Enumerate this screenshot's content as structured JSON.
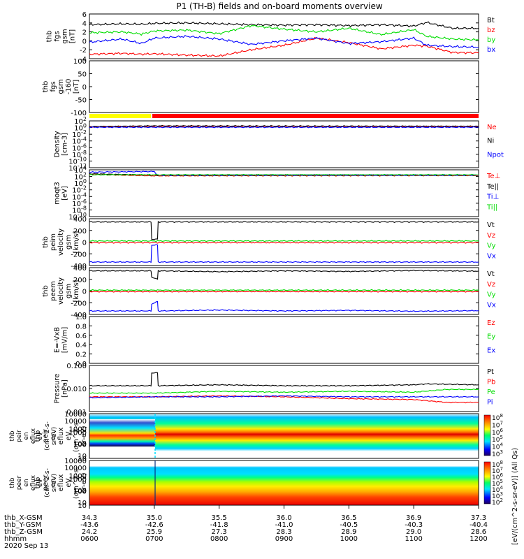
{
  "title": "P1 (TH-B) fields and on-board moments overview",
  "footer": {
    "row_labels": [
      "thb_X-GSM",
      "thb_Y-GSM",
      "thb_Z-GSM",
      "hhmm",
      "2020 Sep 13"
    ],
    "ticks": [
      {
        "x": "34.3",
        "y": "-43.6",
        "z": "24.2",
        "t": "0600"
      },
      {
        "x": "35.0",
        "y": "-42.6",
        "z": "25.9",
        "t": "0700"
      },
      {
        "x": "35.5",
        "y": "-41.8",
        "z": "27.3",
        "t": "0800"
      },
      {
        "x": "36.0",
        "y": "-41.0",
        "z": "28.3",
        "t": "0900"
      },
      {
        "x": "36.5",
        "y": "-40.5",
        "z": "28.9",
        "t": "1000"
      },
      {
        "x": "36.9",
        "y": "-40.3",
        "z": "29.0",
        "t": "1100"
      },
      {
        "x": "37.3",
        "y": "-40.4",
        "z": "28.6",
        "t": "1200"
      }
    ]
  },
  "colors": {
    "black": "#000000",
    "red": "#ff0000",
    "green": "#00dd00",
    "blue": "#0000ff",
    "yellow": "#ffff00"
  },
  "colorbar": {
    "label": "[eV/(cm^2-s-sr-eV)] (All Qs)",
    "ticks_ion": [
      "10^8",
      "10^7",
      "10^6",
      "10^5",
      "10^4",
      "10^3"
    ],
    "ticks_ele": [
      "10^8",
      "10^7",
      "10^6",
      "10^5",
      "10^4",
      "10^3",
      "10^2"
    ]
  },
  "chart_data": [
    {
      "id": "fgs",
      "type": "line",
      "ylabel": [
        "thb",
        "fgs",
        "gsm",
        "[nT]"
      ],
      "ylim": [
        -4,
        6
      ],
      "yticks": [
        "6",
        "4",
        "2",
        "0",
        "-2",
        "-4"
      ],
      "series": [
        {
          "name": "Bt",
          "color": "black",
          "x": [
            6.0,
            6.5,
            6.8,
            7.0,
            7.5,
            8.0,
            8.5,
            9.0,
            9.5,
            10.0,
            10.5,
            11.0,
            11.2,
            11.6,
            12.0
          ],
          "values": [
            3.6,
            3.8,
            3.7,
            3.9,
            4.0,
            3.8,
            3.6,
            3.5,
            3.6,
            3.4,
            3.6,
            3.3,
            4.1,
            2.8,
            2.8
          ]
        },
        {
          "name": "bz",
          "color": "red",
          "x": [
            6.0,
            6.5,
            6.8,
            7.0,
            7.5,
            8.0,
            8.5,
            9.0,
            9.5,
            10.0,
            10.5,
            11.0,
            11.2,
            11.6,
            12.0
          ],
          "values": [
            -3.0,
            -2.8,
            -3.0,
            -2.9,
            -3.2,
            -3.4,
            -2.0,
            -1.0,
            0.6,
            -0.4,
            -1.8,
            -1.0,
            -1.2,
            -2.6,
            -2.7
          ]
        },
        {
          "name": "by",
          "color": "green",
          "x": [
            6.0,
            6.5,
            6.8,
            7.0,
            7.5,
            8.0,
            8.5,
            9.0,
            9.5,
            10.0,
            10.5,
            11.0,
            11.2,
            11.6,
            12.0
          ],
          "values": [
            1.8,
            2.0,
            1.5,
            2.2,
            2.4,
            1.6,
            3.4,
            2.6,
            2.0,
            2.8,
            1.4,
            2.5,
            1.0,
            0.4,
            0.2
          ]
        },
        {
          "name": "bx",
          "color": "blue",
          "x": [
            6.0,
            6.5,
            6.8,
            7.0,
            7.5,
            8.0,
            8.5,
            9.0,
            9.5,
            10.0,
            10.5,
            11.0,
            11.2,
            11.6,
            12.0
          ],
          "values": [
            -0.3,
            0.4,
            -0.6,
            0.6,
            1.0,
            0.4,
            -0.8,
            0.0,
            0.6,
            -0.6,
            -0.2,
            0.6,
            -1.0,
            -1.3,
            -1.4
          ]
        }
      ]
    },
    {
      "id": "fgs_hi",
      "type": "line",
      "ylabel": [
        "thb",
        "fgs",
        "gsm",
        "-160",
        "[nT]"
      ],
      "ylim": [
        -120,
        100
      ],
      "yticks": [
        "100",
        "50",
        "0",
        "-50",
        "-100"
      ],
      "series": []
    },
    {
      "id": "density",
      "type": "line",
      "ylabel": [
        "Density",
        "[cm-3]"
      ],
      "ylim": [
        -12,
        2
      ],
      "log": true,
      "yticks": [
        "10^2",
        "10^0",
        "10^-2",
        "10^-4",
        "10^-6",
        "10^-8",
        "10^-10",
        "10^-12"
      ],
      "series": [
        {
          "name": "Ne",
          "color": "red",
          "x": [
            6.0,
            7.0,
            12.0
          ],
          "values": [
            0.2,
            0.4,
            0.3
          ]
        },
        {
          "name": "Ni",
          "color": "black",
          "x": [
            6.0,
            7.0,
            12.0
          ],
          "values": [
            0.3,
            0.5,
            0.4
          ]
        },
        {
          "name": "Npot",
          "color": "blue",
          "x": [
            6.0,
            12.0
          ],
          "values": [
            0.1,
            0.1
          ]
        }
      ]
    },
    {
      "id": "temp",
      "type": "line",
      "ylabel": [
        "moqt3",
        "[eV]"
      ],
      "ylim": [
        -10,
        4
      ],
      "log": true,
      "yticks": [
        "10^4",
        "10^2",
        "10^0",
        "10^-2",
        "10^-4",
        "10^-6",
        "10^-8",
        "10^-10"
      ],
      "series": [
        {
          "name": "Te⊥",
          "color": "red",
          "x": [
            6.0,
            7.0,
            12.0
          ],
          "values": [
            2.6,
            2.2,
            2.3
          ]
        },
        {
          "name": "Te||",
          "color": "black",
          "x": [
            6.0,
            7.0,
            12.0
          ],
          "values": [
            2.8,
            2.4,
            2.4
          ]
        },
        {
          "name": "Ti⊥",
          "color": "blue",
          "x": [
            6.0,
            7.0,
            7.05,
            12.0
          ],
          "values": [
            3.3,
            3.5,
            2.4,
            2.4
          ]
        },
        {
          "name": "Ti||",
          "color": "green",
          "x": [
            6.0,
            12.0
          ],
          "values": [
            2.5,
            2.5
          ]
        }
      ]
    },
    {
      "id": "peim",
      "type": "line",
      "ylabel": [
        "thb",
        "peim",
        "velocity",
        "gsm",
        "[km/s]"
      ],
      "ylim": [
        -400,
        400
      ],
      "yticks": [
        "400",
        "200",
        "0",
        "-200",
        "-400"
      ],
      "series": [
        {
          "name": "Vt",
          "color": "black",
          "x": [
            6.0,
            6.95,
            6.96,
            7.05,
            7.06,
            12.0
          ],
          "values": [
            345,
            345,
            50,
            50,
            345,
            345
          ]
        },
        {
          "name": "Vz",
          "color": "red",
          "x": [
            6.0,
            12.0
          ],
          "values": [
            -10,
            -10
          ]
        },
        {
          "name": "Vy",
          "color": "green",
          "x": [
            6.0,
            12.0
          ],
          "values": [
            20,
            20
          ]
        },
        {
          "name": "Vx",
          "color": "blue",
          "x": [
            6.0,
            6.95,
            6.96,
            7.05,
            7.06,
            12.0
          ],
          "values": [
            -340,
            -340,
            -50,
            -50,
            -340,
            -340
          ]
        }
      ]
    },
    {
      "id": "peem",
      "type": "line",
      "ylabel": [
        "thb",
        "peem",
        "velocity",
        "gsm",
        "[km/s]"
      ],
      "ylim": [
        -400,
        400
      ],
      "yticks": [
        "400",
        "200",
        "0",
        "-200",
        "-400"
      ],
      "series": [
        {
          "name": "Vt",
          "color": "black",
          "x": [
            6.0,
            6.95,
            6.96,
            7.05,
            7.06,
            8.0,
            9.0,
            10.0,
            11.0,
            12.0
          ],
          "values": [
            345,
            345,
            240,
            200,
            345,
            330,
            345,
            335,
            350,
            340
          ]
        },
        {
          "name": "Vz",
          "color": "red",
          "x": [
            6.0,
            12.0
          ],
          "values": [
            -10,
            -10
          ]
        },
        {
          "name": "Vy",
          "color": "green",
          "x": [
            6.0,
            12.0
          ],
          "values": [
            15,
            15
          ]
        },
        {
          "name": "Vx",
          "color": "blue",
          "x": [
            6.0,
            6.95,
            6.96,
            7.05,
            7.06,
            8.0,
            9.0,
            10.0,
            11.0,
            12.0
          ],
          "values": [
            -340,
            -340,
            -220,
            -180,
            -340,
            -325,
            -340,
            -330,
            -345,
            -335
          ]
        }
      ]
    },
    {
      "id": "efield",
      "type": "line",
      "ylabel": [
        "E=-VxB",
        "[mV/m]"
      ],
      "ylim": [
        0,
        1
      ],
      "yticks": [
        "1.0",
        "0.8",
        "0.6",
        "0.4",
        "0.2",
        "0.0"
      ],
      "series": [
        {
          "name": "Ez",
          "color": "red",
          "x": [],
          "values": []
        },
        {
          "name": "Ey",
          "color": "green",
          "x": [],
          "values": []
        },
        {
          "name": "Ex",
          "color": "blue",
          "x": [],
          "values": []
        }
      ]
    },
    {
      "id": "pressure",
      "type": "line",
      "ylabel": [
        "Pressure",
        "[nPa]"
      ],
      "ylim": [
        -3,
        -0.5
      ],
      "log": true,
      "yticks": [
        "0.100",
        "0.010",
        "0.001"
      ],
      "series": [
        {
          "name": "Pt",
          "color": "black",
          "x": [
            6.0,
            6.95,
            6.96,
            7.05,
            7.06,
            8.0,
            9.0,
            10.0,
            11.0,
            11.2,
            12.0
          ],
          "values": [
            -1.6,
            -1.6,
            -0.9,
            -0.9,
            -1.6,
            -1.55,
            -1.6,
            -1.6,
            -1.55,
            -1.5,
            -1.55
          ]
        },
        {
          "name": "Pb",
          "color": "red",
          "x": [
            6.0,
            7.0,
            8.0,
            9.0,
            10.0,
            11.0,
            11.5,
            12.0
          ],
          "values": [
            -2.2,
            -2.2,
            -2.15,
            -2.2,
            -2.3,
            -2.35,
            -2.5,
            -2.5
          ]
        },
        {
          "name": "Pe",
          "color": "green",
          "x": [
            6.0,
            7.0,
            8.0,
            9.0,
            10.0,
            11.0,
            11.5,
            12.0
          ],
          "values": [
            -2.0,
            -2.0,
            -1.9,
            -1.95,
            -1.9,
            -1.95,
            -1.8,
            -1.8
          ]
        },
        {
          "name": "Pi",
          "color": "blue",
          "x": [
            6.0,
            7.0,
            8.0,
            9.0,
            10.0,
            11.0,
            12.0
          ],
          "values": [
            -2.25,
            -2.2,
            -2.2,
            -2.15,
            -2.2,
            -2.2,
            -2.2
          ]
        }
      ]
    },
    {
      "id": "peir",
      "type": "heatmap",
      "ylabel": [
        "thb",
        "peir",
        "en",
        "eflux",
        "eV",
        "(cm^2-s-",
        "sr-eV)"
      ],
      "yticks": [
        "10000",
        "1000",
        "100",
        "10"
      ]
    },
    {
      "id": "peer",
      "type": "heatmap",
      "ylabel": [
        "thb",
        "peer",
        "en",
        "eflux",
        "eV",
        "(cm^2-s-",
        "sr-eV)"
      ],
      "yticks": [
        "10000",
        "1000",
        "100",
        "10"
      ]
    }
  ]
}
